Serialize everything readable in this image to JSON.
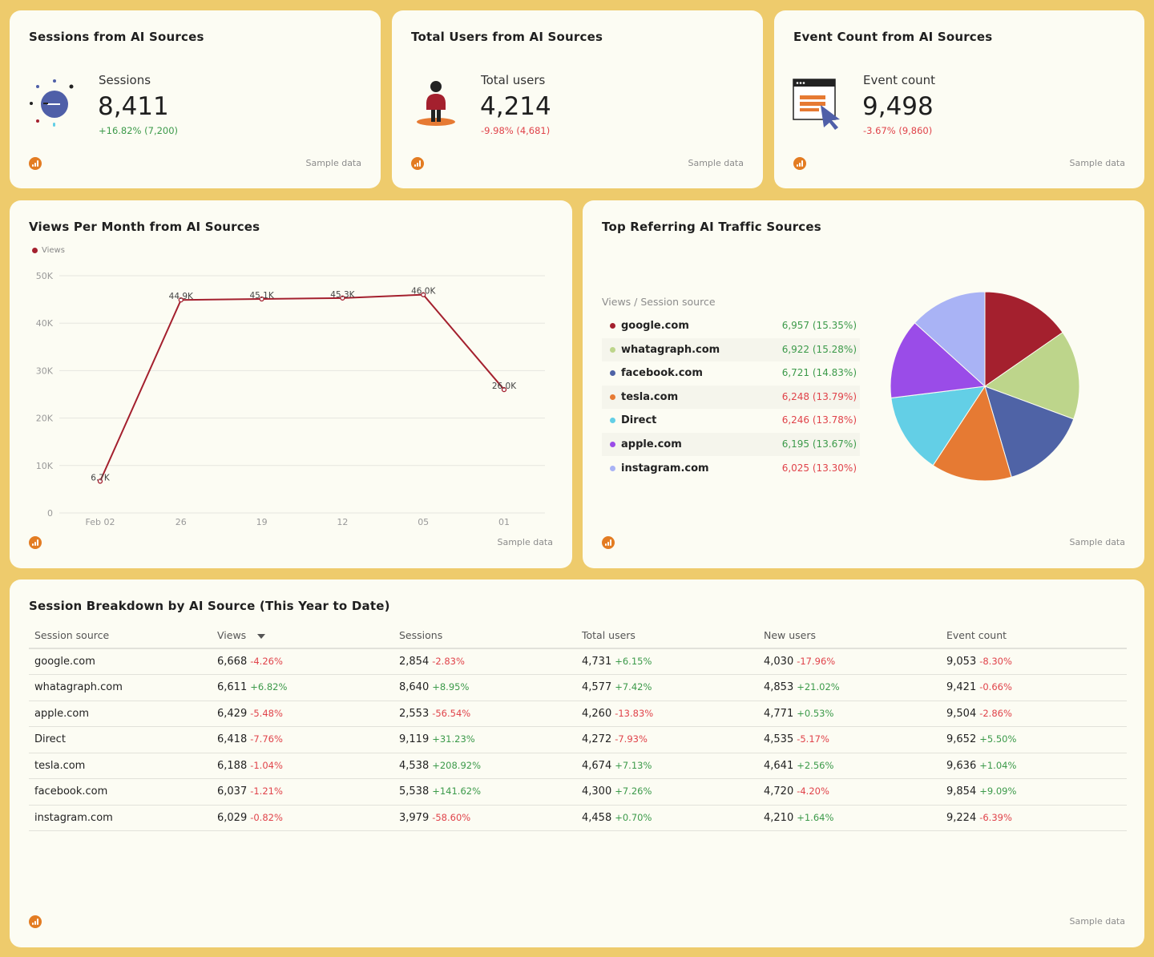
{
  "sample_text": "Sample data",
  "kpis": [
    {
      "title": "Sessions from AI Sources",
      "label": "Sessions",
      "value": "8,411",
      "delta": "+16.82% (7,200)",
      "trend": "pos",
      "icon": "ai-sun-icon"
    },
    {
      "title": "Total Users from AI Sources",
      "label": "Total users",
      "value": "4,214",
      "delta": "-9.98% (4,681)",
      "trend": "neg",
      "icon": "user-icon"
    },
    {
      "title": "Event Count from AI Sources",
      "label": "Event count",
      "value": "9,498",
      "delta": "-3.67% (9,860)",
      "trend": "neg",
      "icon": "browser-cursor-icon"
    }
  ],
  "views_chart": {
    "title": "Views Per Month from AI Sources",
    "legend": "Views"
  },
  "pie_chart": {
    "title": "Top Referring AI Traffic Sources",
    "header": "Views / Session source",
    "rows": [
      {
        "name": "google.com",
        "value": "6,957",
        "share": "(15.35%)",
        "trend": "pos",
        "color": "#a4202e"
      },
      {
        "name": "whatagraph.com",
        "value": "6,922",
        "share": "(15.28%)",
        "trend": "pos",
        "color": "#bdd58b"
      },
      {
        "name": "facebook.com",
        "value": "6,721",
        "share": "(14.83%)",
        "trend": "pos",
        "color": "#4f63a6"
      },
      {
        "name": "tesla.com",
        "value": "6,248",
        "share": "(13.79%)",
        "trend": "neg",
        "color": "#e67a33"
      },
      {
        "name": "Direct",
        "value": "6,246",
        "share": "(13.78%)",
        "trend": "neg",
        "color": "#63cfe6"
      },
      {
        "name": "apple.com",
        "value": "6,195",
        "share": "(13.67%)",
        "trend": "pos",
        "color": "#9a4ce8"
      },
      {
        "name": "instagram.com",
        "value": "6,025",
        "share": "(13.30%)",
        "trend": "neg",
        "color": "#a9b3f5"
      }
    ]
  },
  "table": {
    "title": "Session Breakdown by AI Source (This Year to Date)",
    "columns": [
      "Session source",
      "Views",
      "Sessions",
      "Total users",
      "New users",
      "Event count"
    ],
    "rows": [
      {
        "source": "google.com",
        "cells": [
          [
            "6,668",
            "-4.26%",
            "neg"
          ],
          [
            "2,854",
            "-2.83%",
            "neg"
          ],
          [
            "4,731",
            "+6.15%",
            "pos"
          ],
          [
            "4,030",
            "-17.96%",
            "neg"
          ],
          [
            "9,053",
            "-8.30%",
            "neg"
          ]
        ]
      },
      {
        "source": "whatagraph.com",
        "cells": [
          [
            "6,611",
            "+6.82%",
            "pos"
          ],
          [
            "8,640",
            "+8.95%",
            "pos"
          ],
          [
            "4,577",
            "+7.42%",
            "pos"
          ],
          [
            "4,853",
            "+21.02%",
            "pos"
          ],
          [
            "9,421",
            "-0.66%",
            "neg"
          ]
        ]
      },
      {
        "source": "apple.com",
        "cells": [
          [
            "6,429",
            "-5.48%",
            "neg"
          ],
          [
            "2,553",
            "-56.54%",
            "neg"
          ],
          [
            "4,260",
            "-13.83%",
            "neg"
          ],
          [
            "4,771",
            "+0.53%",
            "pos"
          ],
          [
            "9,504",
            "-2.86%",
            "neg"
          ]
        ]
      },
      {
        "source": "Direct",
        "cells": [
          [
            "6,418",
            "-7.76%",
            "neg"
          ],
          [
            "9,119",
            "+31.23%",
            "pos"
          ],
          [
            "4,272",
            "-7.93%",
            "neg"
          ],
          [
            "4,535",
            "-5.17%",
            "neg"
          ],
          [
            "9,652",
            "+5.50%",
            "pos"
          ]
        ]
      },
      {
        "source": "tesla.com",
        "cells": [
          [
            "6,188",
            "-1.04%",
            "neg"
          ],
          [
            "4,538",
            "+208.92%",
            "pos"
          ],
          [
            "4,674",
            "+7.13%",
            "pos"
          ],
          [
            "4,641",
            "+2.56%",
            "pos"
          ],
          [
            "9,636",
            "+1.04%",
            "pos"
          ]
        ]
      },
      {
        "source": "facebook.com",
        "cells": [
          [
            "6,037",
            "-1.21%",
            "neg"
          ],
          [
            "5,538",
            "+141.62%",
            "pos"
          ],
          [
            "4,300",
            "+7.26%",
            "pos"
          ],
          [
            "4,720",
            "-4.20%",
            "neg"
          ],
          [
            "9,854",
            "+9.09%",
            "pos"
          ]
        ]
      },
      {
        "source": "instagram.com",
        "cells": [
          [
            "6,029",
            "-0.82%",
            "neg"
          ],
          [
            "3,979",
            "-58.60%",
            "neg"
          ],
          [
            "4,458",
            "+0.70%",
            "pos"
          ],
          [
            "4,210",
            "+1.64%",
            "pos"
          ],
          [
            "9,224",
            "-6.39%",
            "neg"
          ]
        ]
      }
    ]
  },
  "chart_data": [
    {
      "type": "line",
      "title": "Views Per Month from AI Sources",
      "x": [
        "Feb 02",
        "26",
        "19",
        "12",
        "05",
        "01"
      ],
      "series": [
        {
          "name": "Views",
          "values": [
            6700,
            44900,
            45100,
            45300,
            46000,
            26000
          ],
          "labels": [
            "6.7K",
            "44.9K",
            "45.1K",
            "45.3K",
            "46.0K",
            "26.0K"
          ],
          "color": "#a4202e"
        }
      ],
      "ylim": [
        0,
        50000
      ],
      "yticks": [
        "0",
        "10K",
        "20K",
        "30K",
        "40K",
        "50K"
      ],
      "grid": true,
      "legend": "top-left"
    },
    {
      "type": "pie",
      "title": "Top Referring AI Traffic Sources",
      "categories": [
        "google.com",
        "whatagraph.com",
        "facebook.com",
        "tesla.com",
        "Direct",
        "apple.com",
        "instagram.com"
      ],
      "values": [
        6957,
        6922,
        6721,
        6248,
        6246,
        6195,
        6025
      ],
      "colors": [
        "#a4202e",
        "#bdd58b",
        "#4f63a6",
        "#e67a33",
        "#63cfe6",
        "#9a4ce8",
        "#a9b3f5"
      ]
    }
  ]
}
